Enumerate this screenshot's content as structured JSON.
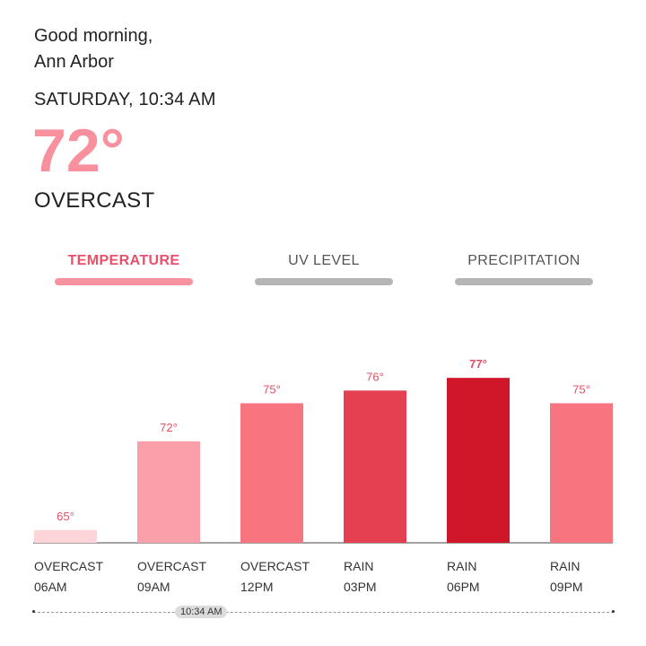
{
  "greeting": {
    "line1": "Good morning,",
    "line2": "Ann Arbor"
  },
  "current": {
    "datetime": "SATURDAY, 10:34 AM",
    "temperature": "72°",
    "condition": "OVERCAST"
  },
  "tabs": [
    {
      "label": "TEMPERATURE",
      "active": true
    },
    {
      "label": "UV LEVEL",
      "active": false
    },
    {
      "label": "PRECIPITATION",
      "active": false
    }
  ],
  "timeline": {
    "current_time": "10:34 AM"
  },
  "colors": {
    "accent": "#f8909e",
    "tab_active": "#e9506a",
    "tab_inactive": "#b5b5b5"
  },
  "chart_data": {
    "type": "bar",
    "categories": [
      "06AM",
      "09AM",
      "12PM",
      "03PM",
      "06PM",
      "09PM"
    ],
    "conditions": [
      "OVERCAST",
      "OVERCAST",
      "OVERCAST",
      "RAIN",
      "RAIN",
      "RAIN"
    ],
    "values": [
      65,
      72,
      75,
      76,
      77,
      75
    ],
    "value_labels": [
      "65°",
      "72°",
      "75°",
      "76°",
      "77°",
      "75°"
    ],
    "highlight_index": 4,
    "bar_colors": [
      "#fdd5d8",
      "#fba0aa",
      "#f87580",
      "#e44052",
      "#cf1729",
      "#f87580"
    ],
    "label_color": "#e05064",
    "ylim": [
      64,
      78
    ]
  }
}
